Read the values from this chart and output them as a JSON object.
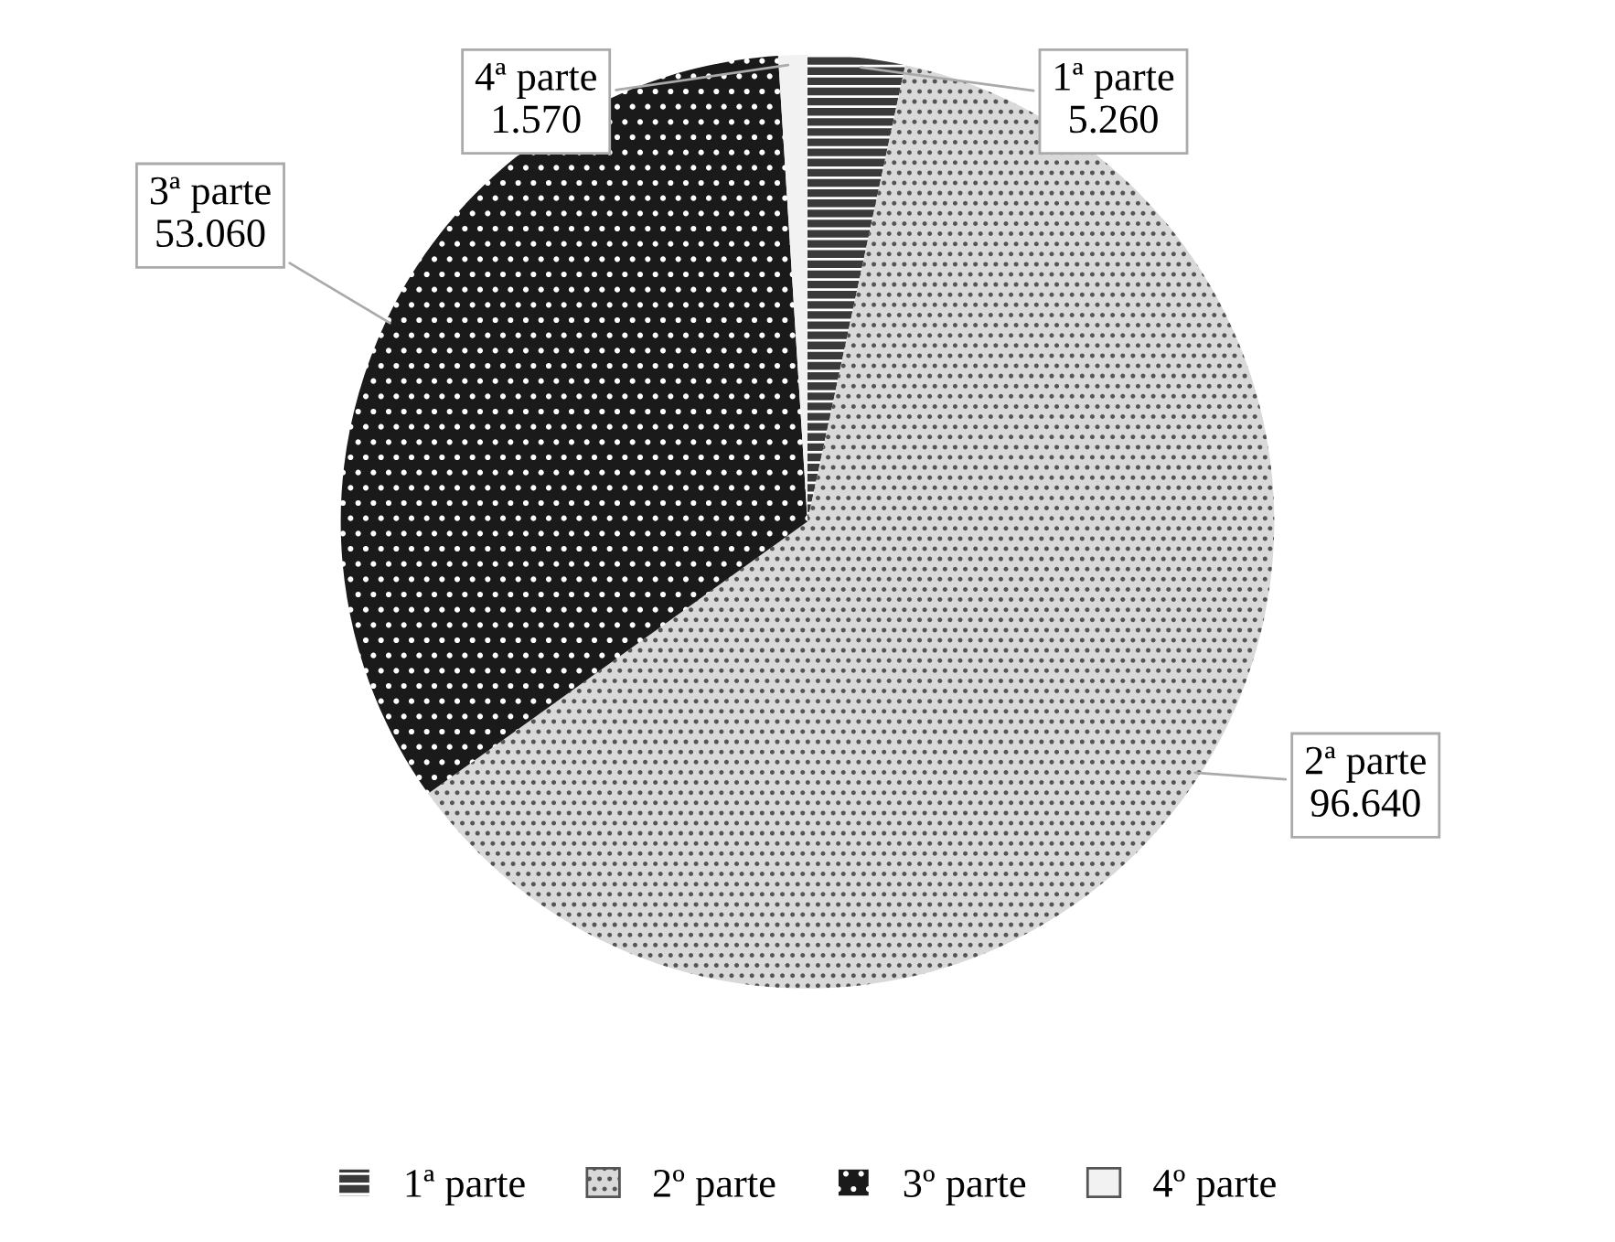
{
  "chart_data": {
    "type": "pie",
    "categories": [
      "1ª parte",
      "2º parte",
      "3º parte",
      "4º parte"
    ],
    "values": [
      5260,
      96640,
      53060,
      1570
    ],
    "value_labels": [
      "1ª parte\n5.260",
      "2ª parte\n96.640",
      "3ª parte\n53.060",
      "4ª parte\n1.570"
    ],
    "colors": [
      "#3a3a3a",
      "#d9d9d9",
      "#1a1a1a",
      "#f2f2f2"
    ],
    "legend": "bottom"
  }
}
